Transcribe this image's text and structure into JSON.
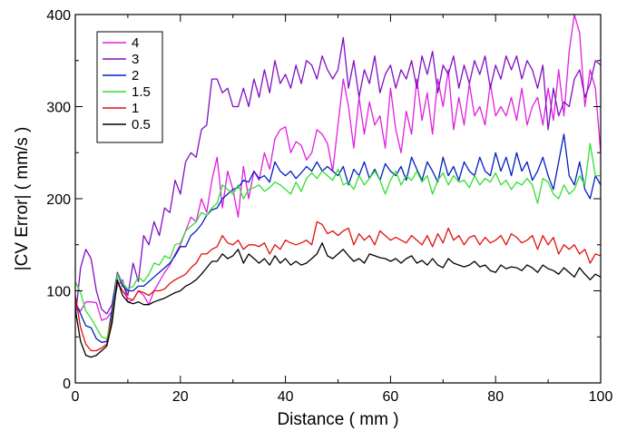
{
  "chart_data": {
    "type": "line",
    "xlabel": "Distance ( mm )",
    "ylabel": "|CV Error| ( mm/s )",
    "xlim": [
      0,
      100
    ],
    "ylim": [
      0,
      400
    ],
    "x_ticks": [
      0,
      20,
      40,
      60,
      80,
      100
    ],
    "y_ticks": [
      0,
      100,
      200,
      300,
      400
    ],
    "grid": false,
    "legend_position": "top-left",
    "series": [
      {
        "name": "4",
        "color": "#e020e0",
        "x": [
          0,
          1,
          2,
          3,
          4,
          5,
          6,
          7,
          8,
          9,
          10,
          11,
          12,
          13,
          14,
          15,
          16,
          17,
          18,
          19,
          20,
          21,
          22,
          23,
          24,
          25,
          26,
          27,
          28,
          29,
          30,
          31,
          32,
          33,
          34,
          35,
          36,
          37,
          38,
          39,
          40,
          41,
          42,
          43,
          44,
          45,
          46,
          47,
          48,
          49,
          50,
          51,
          52,
          53,
          54,
          55,
          56,
          57,
          58,
          59,
          60,
          61,
          62,
          63,
          64,
          65,
          66,
          67,
          68,
          69,
          70,
          71,
          72,
          73,
          74,
          75,
          76,
          77,
          78,
          79,
          80,
          81,
          82,
          83,
          84,
          85,
          86,
          87,
          88,
          89,
          90,
          91,
          92,
          93,
          94,
          95,
          96,
          97,
          98,
          99,
          100
        ],
        "y": [
          85,
          78,
          88,
          88,
          87,
          68,
          70,
          78,
          105,
          112,
          88,
          90,
          100,
          95,
          85,
          100,
          110,
          120,
          128,
          140,
          150,
          165,
          180,
          175,
          200,
          185,
          220,
          245,
          190,
          230,
          210,
          180,
          235,
          200,
          230,
          220,
          250,
          232,
          265,
          275,
          278,
          250,
          262,
          258,
          242,
          250,
          275,
          270,
          260,
          230,
          280,
          330,
          300,
          255,
          310,
          270,
          305,
          280,
          290,
          255,
          320,
          275,
          250,
          295,
          270,
          330,
          285,
          315,
          270,
          330,
          300,
          340,
          275,
          310,
          280,
          325,
          290,
          300,
          280,
          325,
          290,
          300,
          290,
          310,
          285,
          320,
          280,
          300,
          310,
          280,
          320,
          285,
          340,
          290,
          360,
          400,
          380,
          300,
          340,
          320,
          250
        ]
      },
      {
        "name": "3",
        "color": "#8010c0",
        "x": [
          0,
          1,
          2,
          3,
          4,
          5,
          6,
          7,
          8,
          9,
          10,
          11,
          12,
          13,
          14,
          15,
          16,
          17,
          18,
          19,
          20,
          21,
          22,
          23,
          24,
          25,
          26,
          27,
          28,
          29,
          30,
          31,
          32,
          33,
          34,
          35,
          36,
          37,
          38,
          39,
          40,
          41,
          42,
          43,
          44,
          45,
          46,
          47,
          48,
          49,
          50,
          51,
          52,
          53,
          54,
          55,
          56,
          57,
          58,
          59,
          60,
          61,
          62,
          63,
          64,
          65,
          66,
          67,
          68,
          69,
          70,
          71,
          72,
          73,
          74,
          75,
          76,
          77,
          78,
          79,
          80,
          81,
          82,
          83,
          84,
          85,
          86,
          87,
          88,
          89,
          90,
          91,
          92,
          93,
          94,
          95,
          96,
          97,
          98,
          99,
          100
        ],
        "y": [
          70,
          125,
          145,
          135,
          100,
          80,
          75,
          85,
          120,
          108,
          95,
          130,
          110,
          160,
          150,
          175,
          160,
          190,
          185,
          220,
          205,
          240,
          250,
          245,
          275,
          280,
          330,
          330,
          315,
          320,
          300,
          300,
          320,
          300,
          330,
          310,
          340,
          315,
          350,
          325,
          335,
          320,
          345,
          325,
          350,
          345,
          330,
          355,
          340,
          330,
          340,
          375,
          320,
          350,
          310,
          340,
          325,
          355,
          315,
          335,
          345,
          320,
          340,
          330,
          350,
          320,
          355,
          335,
          360,
          315,
          345,
          335,
          355,
          320,
          345,
          325,
          350,
          335,
          355,
          320,
          345,
          330,
          355,
          340,
          355,
          330,
          350,
          340,
          320,
          345,
          275,
          320,
          290,
          305,
          300,
          330,
          340,
          310,
          325,
          350,
          345
        ]
      },
      {
        "name": "2",
        "color": "#0020c0",
        "x": [
          0,
          1,
          2,
          3,
          4,
          5,
          6,
          7,
          8,
          9,
          10,
          11,
          12,
          13,
          14,
          15,
          16,
          17,
          18,
          19,
          20,
          21,
          22,
          23,
          24,
          25,
          26,
          27,
          28,
          29,
          30,
          31,
          32,
          33,
          34,
          35,
          36,
          37,
          38,
          39,
          40,
          41,
          42,
          43,
          44,
          45,
          46,
          47,
          48,
          49,
          50,
          51,
          52,
          53,
          54,
          55,
          56,
          57,
          58,
          59,
          60,
          61,
          62,
          63,
          64,
          65,
          66,
          67,
          68,
          69,
          70,
          71,
          72,
          73,
          74,
          75,
          76,
          77,
          78,
          79,
          80,
          81,
          82,
          83,
          84,
          85,
          86,
          87,
          88,
          89,
          90,
          91,
          92,
          93,
          94,
          95,
          96,
          97,
          98,
          99,
          100
        ],
        "y": [
          88,
          75,
          62,
          60,
          48,
          44,
          45,
          80,
          118,
          105,
          100,
          100,
          105,
          105,
          110,
          115,
          120,
          125,
          130,
          138,
          148,
          148,
          160,
          165,
          172,
          182,
          188,
          190,
          200,
          205,
          210,
          212,
          220,
          218,
          230,
          222,
          225,
          218,
          240,
          230,
          225,
          230,
          222,
          228,
          235,
          230,
          240,
          230,
          235,
          230,
          225,
          235,
          215,
          232,
          225,
          240,
          222,
          232,
          220,
          238,
          230,
          225,
          235,
          220,
          245,
          232,
          220,
          240,
          230,
          218,
          245,
          225,
          235,
          220,
          240,
          230,
          225,
          245,
          230,
          225,
          250,
          230,
          245,
          225,
          250,
          230,
          240,
          220,
          230,
          245,
          225,
          210,
          240,
          270,
          225,
          215,
          240,
          210,
          200,
          225,
          215
        ]
      },
      {
        "name": "1.5",
        "color": "#30e030",
        "x": [
          0,
          1,
          2,
          3,
          4,
          5,
          6,
          7,
          8,
          9,
          10,
          11,
          12,
          13,
          14,
          15,
          16,
          17,
          18,
          19,
          20,
          21,
          22,
          23,
          24,
          25,
          26,
          27,
          28,
          29,
          30,
          31,
          32,
          33,
          34,
          35,
          36,
          37,
          38,
          39,
          40,
          41,
          42,
          43,
          44,
          45,
          46,
          47,
          48,
          49,
          50,
          51,
          52,
          53,
          54,
          55,
          56,
          57,
          58,
          59,
          60,
          61,
          62,
          63,
          64,
          65,
          66,
          67,
          68,
          69,
          70,
          71,
          72,
          73,
          74,
          75,
          76,
          77,
          78,
          79,
          80,
          81,
          82,
          83,
          84,
          85,
          86,
          87,
          88,
          89,
          90,
          91,
          92,
          93,
          94,
          95,
          96,
          97,
          98,
          99,
          100
        ],
        "y": [
          110,
          98,
          78,
          70,
          60,
          50,
          48,
          72,
          118,
          108,
          102,
          105,
          115,
          110,
          118,
          130,
          128,
          138,
          135,
          150,
          152,
          165,
          170,
          175,
          185,
          182,
          190,
          195,
          215,
          210,
          205,
          215,
          200,
          210,
          212,
          215,
          208,
          212,
          218,
          215,
          210,
          205,
          218,
          208,
          222,
          228,
          222,
          230,
          225,
          220,
          232,
          215,
          218,
          210,
          225,
          215,
          222,
          230,
          220,
          205,
          220,
          230,
          215,
          225,
          220,
          230,
          218,
          225,
          205,
          220,
          228,
          215,
          225,
          218,
          220,
          212,
          225,
          215,
          222,
          218,
          228,
          215,
          220,
          210,
          218,
          215,
          222,
          215,
          195,
          222,
          218,
          205,
          200,
          215,
          205,
          210,
          225,
          215,
          260,
          225,
          225
        ]
      },
      {
        "name": "1",
        "color": "#e01010",
        "x": [
          0,
          1,
          2,
          3,
          4,
          5,
          6,
          7,
          8,
          9,
          10,
          11,
          12,
          13,
          14,
          15,
          16,
          17,
          18,
          19,
          20,
          21,
          22,
          23,
          24,
          25,
          26,
          27,
          28,
          29,
          30,
          31,
          32,
          33,
          34,
          35,
          36,
          37,
          38,
          39,
          40,
          41,
          42,
          43,
          44,
          45,
          46,
          47,
          48,
          49,
          50,
          51,
          52,
          53,
          54,
          55,
          56,
          57,
          58,
          59,
          60,
          61,
          62,
          63,
          64,
          65,
          66,
          67,
          68,
          69,
          70,
          71,
          72,
          73,
          74,
          75,
          76,
          77,
          78,
          79,
          80,
          81,
          82,
          83,
          84,
          85,
          86,
          87,
          88,
          89,
          90,
          91,
          92,
          93,
          94,
          95,
          96,
          97,
          98,
          99,
          100
        ],
        "y": [
          95,
          60,
          42,
          35,
          35,
          38,
          42,
          70,
          110,
          100,
          92,
          90,
          100,
          98,
          95,
          100,
          100,
          102,
          108,
          112,
          115,
          118,
          125,
          130,
          140,
          140,
          145,
          148,
          160,
          152,
          150,
          155,
          145,
          150,
          150,
          148,
          152,
          140,
          150,
          145,
          155,
          152,
          150,
          152,
          155,
          150,
          175,
          172,
          162,
          165,
          160,
          165,
          168,
          150,
          162,
          155,
          160,
          150,
          165,
          160,
          155,
          158,
          155,
          152,
          160,
          155,
          150,
          160,
          148,
          162,
          152,
          168,
          155,
          160,
          150,
          158,
          160,
          150,
          158,
          152,
          155,
          160,
          150,
          162,
          158,
          152,
          155,
          160,
          145,
          160,
          150,
          158,
          140,
          150,
          145,
          150,
          140,
          145,
          130,
          140,
          138
        ]
      },
      {
        "name": "0.5",
        "color": "#000000",
        "x": [
          0,
          1,
          2,
          3,
          4,
          5,
          6,
          7,
          8,
          9,
          10,
          11,
          12,
          13,
          14,
          15,
          16,
          17,
          18,
          19,
          20,
          21,
          22,
          23,
          24,
          25,
          26,
          27,
          28,
          29,
          30,
          31,
          32,
          33,
          34,
          35,
          36,
          37,
          38,
          39,
          40,
          41,
          42,
          43,
          44,
          45,
          46,
          47,
          48,
          49,
          50,
          51,
          52,
          53,
          54,
          55,
          56,
          57,
          58,
          59,
          60,
          61,
          62,
          63,
          64,
          65,
          66,
          67,
          68,
          69,
          70,
          71,
          72,
          73,
          74,
          75,
          76,
          77,
          78,
          79,
          80,
          81,
          82,
          83,
          84,
          85,
          86,
          87,
          88,
          89,
          90,
          91,
          92,
          93,
          94,
          95,
          96,
          97,
          98,
          99,
          100
        ],
        "y": [
          80,
          45,
          30,
          28,
          30,
          35,
          40,
          65,
          112,
          95,
          88,
          86,
          88,
          85,
          85,
          88,
          90,
          92,
          95,
          98,
          100,
          105,
          108,
          112,
          118,
          125,
          132,
          132,
          140,
          135,
          138,
          145,
          130,
          140,
          135,
          130,
          135,
          128,
          138,
          130,
          135,
          128,
          132,
          128,
          130,
          135,
          140,
          152,
          138,
          135,
          140,
          145,
          138,
          132,
          135,
          130,
          140,
          138,
          136,
          135,
          132,
          135,
          130,
          135,
          138,
          130,
          133,
          128,
          135,
          128,
          125,
          135,
          130,
          128,
          126,
          128,
          132,
          126,
          128,
          122,
          120,
          128,
          124,
          126,
          125,
          122,
          128,
          125,
          120,
          128,
          124,
          122,
          118,
          125,
          120,
          115,
          125,
          118,
          112,
          118,
          115
        ]
      }
    ]
  }
}
